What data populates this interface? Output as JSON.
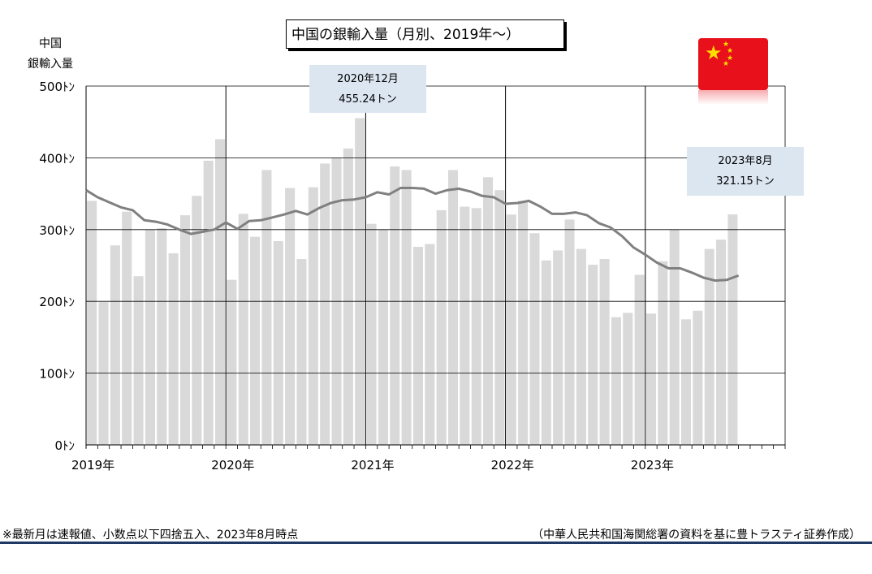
{
  "chart_data": {
    "type": "bar",
    "title": "中国の銀輸入量（月別、2019年～）",
    "ylabel": "中国\n銀輸入量",
    "ylim": [
      0,
      500
    ],
    "yticks": [
      "0ﾄﾝ",
      "100ﾄﾝ",
      "200ﾄﾝ",
      "300ﾄﾝ",
      "400ﾄﾝ",
      "500ﾄﾝ"
    ],
    "ytick_values": [
      0,
      100,
      200,
      300,
      400,
      500
    ],
    "xtick_labels": [
      "2019年",
      "2020年",
      "2021年",
      "2022年",
      "2023年"
    ],
    "grid": true,
    "months_span": 60,
    "series": [
      {
        "kind": "bar",
        "color": "#d9d9d9",
        "values": [
          340,
          199,
          278,
          325,
          235,
          300,
          302,
          267,
          320,
          347,
          396,
          426,
          230,
          322,
          290,
          383,
          284,
          358,
          259,
          359,
          392,
          400,
          413,
          455.24,
          308,
          300,
          388,
          383,
          276,
          280,
          327,
          383,
          332,
          330,
          373,
          355,
          321,
          340,
          295,
          257,
          271,
          314,
          273,
          251,
          259,
          178,
          184,
          237,
          183,
          256,
          300,
          175,
          187,
          273,
          286,
          321.15
        ]
      },
      {
        "kind": "line",
        "color": "#808080",
        "values": [
          355,
          345,
          338,
          331,
          327,
          313,
          311,
          307,
          300,
          294,
          297,
          300,
          310,
          301,
          312,
          313,
          317,
          321,
          326,
          321,
          330,
          337,
          341,
          342,
          345,
          352,
          349,
          358,
          358,
          357,
          350,
          355,
          357,
          353,
          347,
          345,
          336,
          337,
          340,
          332,
          322,
          322,
          324,
          320,
          309,
          303,
          291,
          275,
          265,
          254,
          246,
          246,
          240,
          233,
          229,
          230,
          236
        ]
      }
    ],
    "annotations": [
      {
        "label": "2020年12月",
        "value_text": "455.24トン"
      },
      {
        "label": "2023年8月",
        "value_text": "321.15トン"
      }
    ]
  },
  "footnote": "※最新月は速報値、小数点以下四捨五入、2023年8月時点",
  "source": "（中華人民共和国海関総署の資料を基に豊トラスティ証券作成）",
  "flag": {
    "icon": "china-flag-icon",
    "color": "#e8101b",
    "star_color": "#ffde00"
  }
}
